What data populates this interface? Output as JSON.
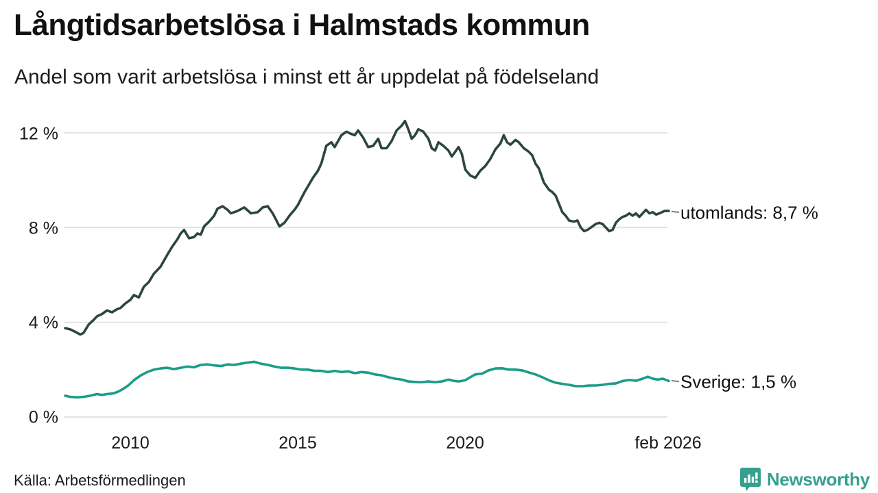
{
  "header": {
    "title": "Långtidsarbetslösa i Halmstads kommun",
    "subtitle": "Andel som varit arbetslösa i minst ett år uppdelat på födelseland"
  },
  "footer": {
    "source": "Källa: Arbetsförmedlingen",
    "branding": {
      "name": "Newsworthy",
      "color": "#36a08d",
      "icon": "bar-chart-speech-bubble"
    }
  },
  "colors": {
    "utomlands_line": "#2b463e",
    "sverige_line": "#1b9c88",
    "gridline": "#e3e3e3",
    "leader_dash": "#4a4a4a",
    "text": "#1a1a1a"
  },
  "chart_data": {
    "type": "line",
    "title": "Långtidsarbetslösa i Halmstads kommun",
    "subtitle": "Andel som varit arbetslösa i minst ett år uppdelat på födelseland",
    "grid": true,
    "x_axis": {
      "min": 2008.05,
      "max": 2026.08,
      "ticks": [
        "2010",
        "2015",
        "2020",
        "feb 2026"
      ],
      "tick_values": [
        2010,
        2015,
        2020,
        2026.08
      ]
    },
    "y_axis": {
      "min": 0,
      "max": 12,
      "ticks": [
        "12 %",
        "8 %",
        "4 %",
        "0 %"
      ],
      "tick_values": [
        12,
        8,
        4,
        0
      ]
    },
    "series": [
      {
        "name": "utomlands",
        "label": "utomlands: 8,7 %",
        "latest_value": "8,7 %",
        "color": "#2b463e",
        "points": [
          [
            2008.05,
            3.75
          ],
          [
            2008.2,
            3.7
          ],
          [
            2008.35,
            3.6
          ],
          [
            2008.5,
            3.48
          ],
          [
            2008.6,
            3.55
          ],
          [
            2008.75,
            3.9
          ],
          [
            2008.9,
            4.1
          ],
          [
            2009.0,
            4.25
          ],
          [
            2009.15,
            4.35
          ],
          [
            2009.3,
            4.5
          ],
          [
            2009.45,
            4.42
          ],
          [
            2009.6,
            4.55
          ],
          [
            2009.7,
            4.6
          ],
          [
            2009.85,
            4.8
          ],
          [
            2010.0,
            4.95
          ],
          [
            2010.1,
            5.15
          ],
          [
            2010.25,
            5.05
          ],
          [
            2010.4,
            5.5
          ],
          [
            2010.55,
            5.7
          ],
          [
            2010.7,
            6.05
          ],
          [
            2010.9,
            6.35
          ],
          [
            2011.1,
            6.85
          ],
          [
            2011.25,
            7.2
          ],
          [
            2011.4,
            7.5
          ],
          [
            2011.5,
            7.75
          ],
          [
            2011.6,
            7.9
          ],
          [
            2011.75,
            7.55
          ],
          [
            2011.9,
            7.6
          ],
          [
            2012.0,
            7.75
          ],
          [
            2012.1,
            7.7
          ],
          [
            2012.2,
            8.05
          ],
          [
            2012.35,
            8.25
          ],
          [
            2012.5,
            8.5
          ],
          [
            2012.6,
            8.8
          ],
          [
            2012.75,
            8.9
          ],
          [
            2012.9,
            8.75
          ],
          [
            2013.0,
            8.6
          ],
          [
            2013.2,
            8.7
          ],
          [
            2013.4,
            8.85
          ],
          [
            2013.6,
            8.6
          ],
          [
            2013.8,
            8.65
          ],
          [
            2013.95,
            8.85
          ],
          [
            2014.1,
            8.9
          ],
          [
            2014.25,
            8.6
          ],
          [
            2014.45,
            8.05
          ],
          [
            2014.6,
            8.2
          ],
          [
            2014.75,
            8.5
          ],
          [
            2014.9,
            8.75
          ],
          [
            2015.0,
            8.95
          ],
          [
            2015.2,
            9.5
          ],
          [
            2015.45,
            10.1
          ],
          [
            2015.6,
            10.4
          ],
          [
            2015.7,
            10.7
          ],
          [
            2015.85,
            11.45
          ],
          [
            2016.0,
            11.6
          ],
          [
            2016.1,
            11.4
          ],
          [
            2016.3,
            11.9
          ],
          [
            2016.45,
            12.05
          ],
          [
            2016.6,
            11.95
          ],
          [
            2016.7,
            11.9
          ],
          [
            2016.8,
            12.1
          ],
          [
            2016.95,
            11.8
          ],
          [
            2017.1,
            11.4
          ],
          [
            2017.25,
            11.45
          ],
          [
            2017.4,
            11.75
          ],
          [
            2017.5,
            11.35
          ],
          [
            2017.65,
            11.35
          ],
          [
            2017.8,
            11.65
          ],
          [
            2017.95,
            12.1
          ],
          [
            2018.1,
            12.3
          ],
          [
            2018.2,
            12.5
          ],
          [
            2018.3,
            12.15
          ],
          [
            2018.4,
            11.75
          ],
          [
            2018.5,
            11.9
          ],
          [
            2018.6,
            12.15
          ],
          [
            2018.75,
            12.05
          ],
          [
            2018.9,
            11.75
          ],
          [
            2019.0,
            11.35
          ],
          [
            2019.1,
            11.25
          ],
          [
            2019.2,
            11.6
          ],
          [
            2019.35,
            11.45
          ],
          [
            2019.5,
            11.25
          ],
          [
            2019.6,
            11.0
          ],
          [
            2019.7,
            11.2
          ],
          [
            2019.8,
            11.4
          ],
          [
            2019.9,
            11.1
          ],
          [
            2020.0,
            10.45
          ],
          [
            2020.15,
            10.2
          ],
          [
            2020.3,
            10.1
          ],
          [
            2020.45,
            10.4
          ],
          [
            2020.6,
            10.6
          ],
          [
            2020.75,
            10.9
          ],
          [
            2020.9,
            11.3
          ],
          [
            2021.05,
            11.55
          ],
          [
            2021.15,
            11.9
          ],
          [
            2021.25,
            11.6
          ],
          [
            2021.35,
            11.5
          ],
          [
            2021.5,
            11.7
          ],
          [
            2021.6,
            11.6
          ],
          [
            2021.75,
            11.35
          ],
          [
            2021.9,
            11.2
          ],
          [
            2022.0,
            11.05
          ],
          [
            2022.1,
            10.7
          ],
          [
            2022.2,
            10.5
          ],
          [
            2022.35,
            9.9
          ],
          [
            2022.5,
            9.6
          ],
          [
            2022.6,
            9.5
          ],
          [
            2022.7,
            9.35
          ],
          [
            2022.8,
            9.0
          ],
          [
            2022.9,
            8.65
          ],
          [
            2023.0,
            8.5
          ],
          [
            2023.1,
            8.3
          ],
          [
            2023.25,
            8.25
          ],
          [
            2023.35,
            8.3
          ],
          [
            2023.45,
            8.0
          ],
          [
            2023.55,
            7.85
          ],
          [
            2023.65,
            7.9
          ],
          [
            2023.75,
            8.0
          ],
          [
            2023.9,
            8.15
          ],
          [
            2024.0,
            8.2
          ],
          [
            2024.1,
            8.15
          ],
          [
            2024.2,
            8.0
          ],
          [
            2024.3,
            7.85
          ],
          [
            2024.4,
            7.9
          ],
          [
            2024.5,
            8.2
          ],
          [
            2024.6,
            8.35
          ],
          [
            2024.7,
            8.45
          ],
          [
            2024.8,
            8.5
          ],
          [
            2024.9,
            8.6
          ],
          [
            2025.0,
            8.5
          ],
          [
            2025.1,
            8.6
          ],
          [
            2025.2,
            8.45
          ],
          [
            2025.3,
            8.6
          ],
          [
            2025.4,
            8.75
          ],
          [
            2025.5,
            8.6
          ],
          [
            2025.6,
            8.65
          ],
          [
            2025.7,
            8.55
          ],
          [
            2025.8,
            8.6
          ],
          [
            2025.95,
            8.7
          ],
          [
            2026.08,
            8.7
          ]
        ]
      },
      {
        "name": "Sverige",
        "label": "Sverige: 1,5 %",
        "latest_value": "1,5 %",
        "color": "#1b9c88",
        "points": [
          [
            2008.05,
            0.9
          ],
          [
            2008.2,
            0.85
          ],
          [
            2008.4,
            0.83
          ],
          [
            2008.6,
            0.85
          ],
          [
            2008.8,
            0.9
          ],
          [
            2009.0,
            0.97
          ],
          [
            2009.15,
            0.93
          ],
          [
            2009.3,
            0.97
          ],
          [
            2009.5,
            1.0
          ],
          [
            2009.65,
            1.08
          ],
          [
            2009.8,
            1.2
          ],
          [
            2009.95,
            1.35
          ],
          [
            2010.1,
            1.55
          ],
          [
            2010.3,
            1.75
          ],
          [
            2010.5,
            1.9
          ],
          [
            2010.7,
            2.0
          ],
          [
            2010.9,
            2.05
          ],
          [
            2011.1,
            2.08
          ],
          [
            2011.3,
            2.02
          ],
          [
            2011.5,
            2.08
          ],
          [
            2011.7,
            2.13
          ],
          [
            2011.9,
            2.1
          ],
          [
            2012.1,
            2.2
          ],
          [
            2012.3,
            2.22
          ],
          [
            2012.5,
            2.18
          ],
          [
            2012.7,
            2.15
          ],
          [
            2012.9,
            2.22
          ],
          [
            2013.1,
            2.2
          ],
          [
            2013.3,
            2.25
          ],
          [
            2013.5,
            2.3
          ],
          [
            2013.7,
            2.33
          ],
          [
            2013.9,
            2.25
          ],
          [
            2014.1,
            2.2
          ],
          [
            2014.3,
            2.13
          ],
          [
            2014.5,
            2.08
          ],
          [
            2014.7,
            2.08
          ],
          [
            2014.9,
            2.05
          ],
          [
            2015.1,
            2.0
          ],
          [
            2015.3,
            2.0
          ],
          [
            2015.5,
            1.95
          ],
          [
            2015.7,
            1.95
          ],
          [
            2015.9,
            1.9
          ],
          [
            2016.1,
            1.95
          ],
          [
            2016.3,
            1.9
          ],
          [
            2016.5,
            1.93
          ],
          [
            2016.7,
            1.85
          ],
          [
            2016.9,
            1.9
          ],
          [
            2017.1,
            1.87
          ],
          [
            2017.3,
            1.8
          ],
          [
            2017.5,
            1.76
          ],
          [
            2017.7,
            1.68
          ],
          [
            2017.9,
            1.62
          ],
          [
            2018.1,
            1.58
          ],
          [
            2018.3,
            1.5
          ],
          [
            2018.5,
            1.48
          ],
          [
            2018.7,
            1.47
          ],
          [
            2018.9,
            1.5
          ],
          [
            2019.1,
            1.47
          ],
          [
            2019.3,
            1.5
          ],
          [
            2019.5,
            1.58
          ],
          [
            2019.65,
            1.53
          ],
          [
            2019.8,
            1.5
          ],
          [
            2020.0,
            1.55
          ],
          [
            2020.15,
            1.68
          ],
          [
            2020.3,
            1.8
          ],
          [
            2020.5,
            1.83
          ],
          [
            2020.7,
            1.97
          ],
          [
            2020.9,
            2.05
          ],
          [
            2021.1,
            2.06
          ],
          [
            2021.3,
            2.0
          ],
          [
            2021.5,
            2.0
          ],
          [
            2021.7,
            1.97
          ],
          [
            2021.9,
            1.88
          ],
          [
            2022.1,
            1.8
          ],
          [
            2022.3,
            1.68
          ],
          [
            2022.5,
            1.55
          ],
          [
            2022.7,
            1.45
          ],
          [
            2022.9,
            1.4
          ],
          [
            2023.1,
            1.36
          ],
          [
            2023.3,
            1.3
          ],
          [
            2023.5,
            1.3
          ],
          [
            2023.7,
            1.33
          ],
          [
            2023.9,
            1.33
          ],
          [
            2024.1,
            1.36
          ],
          [
            2024.3,
            1.4
          ],
          [
            2024.5,
            1.42
          ],
          [
            2024.7,
            1.52
          ],
          [
            2024.9,
            1.56
          ],
          [
            2025.1,
            1.53
          ],
          [
            2025.3,
            1.62
          ],
          [
            2025.45,
            1.7
          ],
          [
            2025.6,
            1.62
          ],
          [
            2025.75,
            1.58
          ],
          [
            2025.9,
            1.62
          ],
          [
            2026.08,
            1.52
          ]
        ]
      }
    ]
  }
}
